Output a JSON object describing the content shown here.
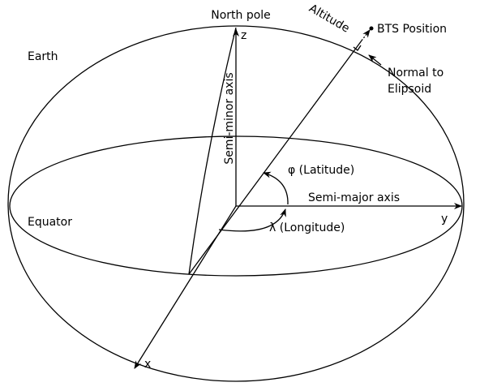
{
  "labels": {
    "north_pole": "North pole",
    "z": "z",
    "altitude": "Altitude",
    "bts": "BTS Position",
    "normal_1": "Normal to",
    "normal_2": "Elipsoid",
    "earth": "Earth",
    "semi_minor": "Semi-minor axis",
    "latitude": "φ (Latitude)",
    "semi_major": "Semi-major axis",
    "equator": "Equator",
    "y": "y",
    "longitude": "λ (Longitude)",
    "x": "x"
  }
}
